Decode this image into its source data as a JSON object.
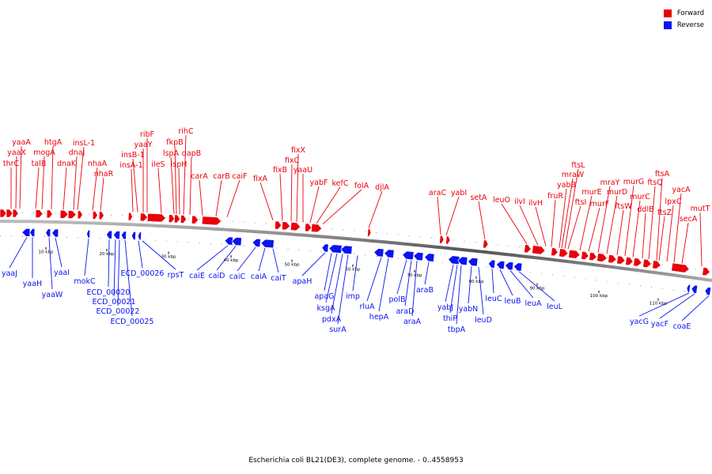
{
  "legend": {
    "forward_label": "Forward",
    "reverse_label": "Reverse",
    "forward_color": "#e8000b",
    "reverse_color": "#0a14f0"
  },
  "caption": "Escherichia coli BL21(DE3), complete genome. - 0..4558953",
  "scale": {
    "unit": "kbp",
    "ticks": [
      10,
      20,
      30,
      40,
      50,
      60,
      70,
      80,
      90,
      100,
      110
    ]
  },
  "forward_labels": [
    "yaaA",
    "yaaX",
    "thrC",
    "htgA",
    "mogA",
    "talB",
    "dnaK",
    "insL-1",
    "dnaJ",
    "nhaA",
    "nhaR",
    "ribF",
    "yaaY",
    "insB-1",
    "insA-1",
    "rihC",
    "fkpB",
    "lspA",
    "ileS",
    "dapB",
    "ispH",
    "carA",
    "carB",
    "caiF",
    "fixX",
    "fixC",
    "fixB",
    "yaaU",
    "fixA",
    "yabF",
    "kefC",
    "folA",
    "djlA",
    "araC",
    "yabI",
    "setA",
    "leuO",
    "ilvI",
    "ilvH",
    "fruR",
    "ftsL",
    "mraW",
    "yabB",
    "ftsI",
    "murE",
    "murF",
    "mraY",
    "murD",
    "ftsW",
    "murG",
    "murC",
    "ddlB",
    "ftsQ",
    "ftsA",
    "ftsZ",
    "lpxC",
    "yacA",
    "secA",
    "mutT"
  ],
  "reverse_labels": [
    "yaaJ",
    "yaaH",
    "yaaW",
    "yaaI",
    "mokC",
    "ECD_00020",
    "ECD_00021",
    "ECD_00022",
    "ECD_00025",
    "ECD_00026",
    "rpsT",
    "caiE",
    "caiD",
    "caiC",
    "caiA",
    "caiT",
    "apaH",
    "apaG",
    "ksgA",
    "pdxA",
    "surA",
    "imp",
    "rluA",
    "hepA",
    "polB",
    "araD",
    "araA",
    "araB",
    "yabJ",
    "thiP",
    "tbpA",
    "yabN",
    "leuD",
    "leuC",
    "leuB",
    "leuA",
    "leuL",
    "yacG",
    "yacF",
    "coaE"
  ]
}
